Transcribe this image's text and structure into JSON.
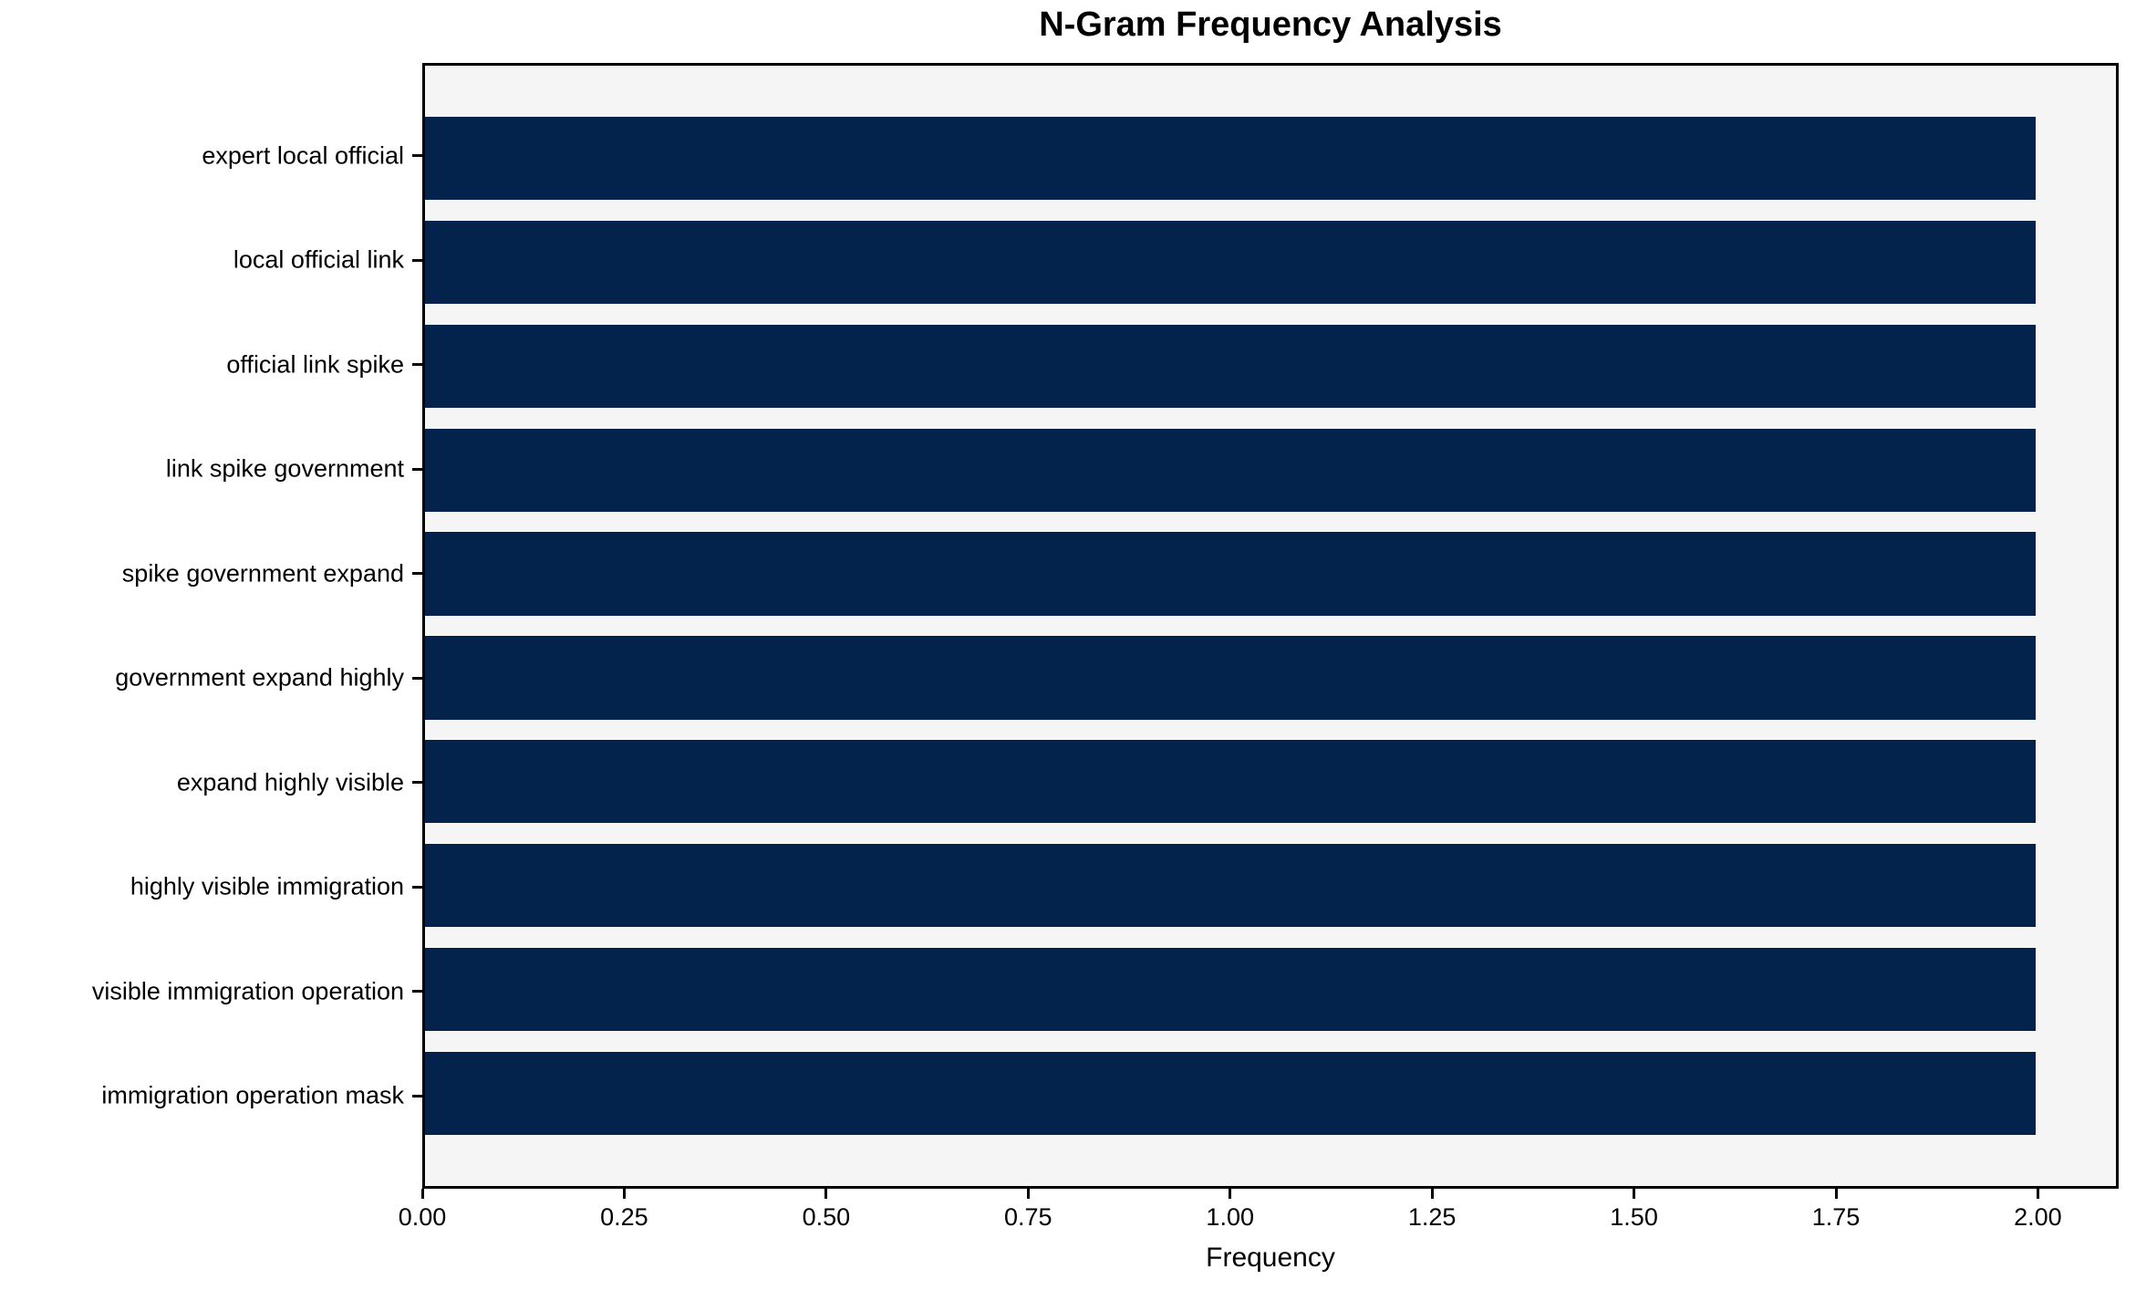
{
  "chart_data": {
    "type": "bar",
    "orientation": "horizontal",
    "title": "N-Gram Frequency Analysis",
    "xlabel": "Frequency",
    "ylabel": "",
    "categories": [
      "expert local official",
      "local official link",
      "official link spike",
      "link spike government",
      "spike government expand",
      "government expand highly",
      "expand highly visible",
      "highly visible immigration",
      "visible immigration operation",
      "immigration operation mask"
    ],
    "values": [
      2,
      2,
      2,
      2,
      2,
      2,
      2,
      2,
      2,
      2
    ],
    "xlim": [
      0,
      2.1
    ],
    "xticks": [
      0,
      0.25,
      0.5,
      0.75,
      1.0,
      1.25,
      1.5,
      1.75,
      2.0
    ],
    "xtick_labels": [
      "0.00",
      "0.25",
      "0.50",
      "0.75",
      "1.00",
      "1.25",
      "1.50",
      "1.75",
      "2.00"
    ],
    "bar_color": "#04234c",
    "plot_background": "#f5f5f5",
    "axis_color": "#000000",
    "grid": false,
    "legend": null,
    "bar_height_ratio": 0.8,
    "outer_margin_units": 0.49
  }
}
